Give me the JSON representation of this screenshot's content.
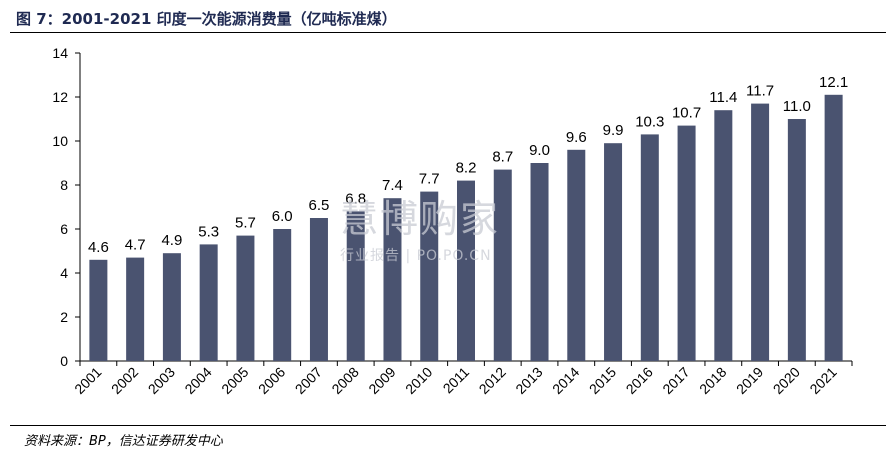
{
  "figure": {
    "title": "图 7：2001-2021 印度一次能源消费量（亿吨标准煤）",
    "source": "资料来源：BP，信达证券研发中心",
    "watermark_main": "慧博购家",
    "watermark_sub": "行业报告 | PO.PO.CN"
  },
  "colors": {
    "bar": "#4a5370",
    "axis": "#000000"
  },
  "chart_data": {
    "type": "bar",
    "title": "2001-2021 印度一次能源消费量（亿吨标准煤）",
    "xlabel": "",
    "ylabel": "",
    "categories": [
      "2001",
      "2002",
      "2003",
      "2004",
      "2005",
      "2006",
      "2007",
      "2008",
      "2009",
      "2010",
      "2011",
      "2012",
      "2013",
      "2014",
      "2015",
      "2016",
      "2017",
      "2018",
      "2019",
      "2020",
      "2021"
    ],
    "values": [
      4.6,
      4.7,
      4.9,
      5.3,
      5.7,
      6.0,
      6.5,
      6.8,
      7.4,
      7.7,
      8.2,
      8.7,
      9.0,
      9.6,
      9.9,
      10.3,
      10.7,
      11.4,
      11.7,
      11.0,
      12.1
    ],
    "value_labels": [
      "4.6",
      "4.7",
      "4.9",
      "5.3",
      "5.7",
      "6.0",
      "6.5",
      "6.8",
      "7.4",
      "7.7",
      "8.2",
      "8.7",
      "9.0",
      "9.6",
      "9.9",
      "10.3",
      "10.7",
      "11.4",
      "11.7",
      "11.0",
      "12.1"
    ],
    "ylim": [
      0,
      14
    ],
    "yticks": [
      0,
      2,
      4,
      6,
      8,
      10,
      12,
      14
    ],
    "grid": false,
    "legend": "none"
  }
}
